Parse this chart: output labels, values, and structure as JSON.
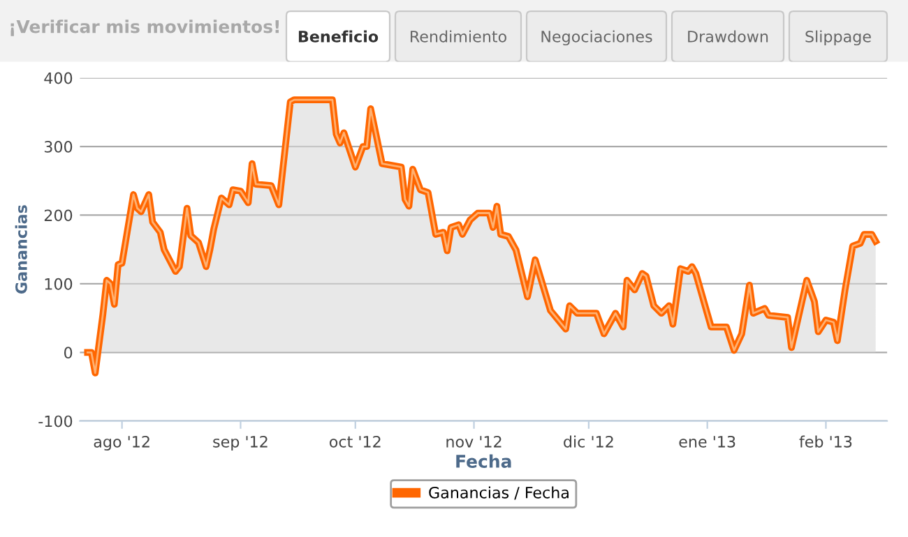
{
  "chart_data": {
    "type": "area",
    "title": "¡Verificar mis movimientos!",
    "annotations": [
      "Beneficio",
      "Rendimiento",
      "Negociaciones",
      "Drawdown",
      "Slippage"
    ],
    "xlabel": "Fecha",
    "ylabel": "Ganancias",
    "x": [
      "2012-07-23",
      "2012-07-24",
      "2012-07-25",
      "2012-07-27",
      "2012-07-28",
      "2012-07-29",
      "2012-07-30",
      "2012-07-31",
      "2012-08-01",
      "2012-08-04",
      "2012-08-05",
      "2012-08-06",
      "2012-08-08",
      "2012-08-09",
      "2012-08-11",
      "2012-08-12",
      "2012-08-15",
      "2012-08-16",
      "2012-08-18",
      "2012-08-19",
      "2012-08-21",
      "2012-08-23",
      "2012-08-24",
      "2012-08-25",
      "2012-08-27",
      "2012-08-29",
      "2012-08-30",
      "2012-09-01",
      "2012-09-03",
      "2012-09-04",
      "2012-09-05",
      "2012-09-09",
      "2012-09-11",
      "2012-09-14",
      "2012-09-15",
      "2012-09-23",
      "2012-09-25",
      "2012-09-26",
      "2012-09-27",
      "2012-09-28",
      "2012-10-01",
      "2012-10-03",
      "2012-10-04",
      "2012-10-05",
      "2012-10-08",
      "2012-10-13",
      "2012-10-14",
      "2012-10-15",
      "2012-10-16",
      "2012-10-18",
      "2012-10-20",
      "2012-10-22",
      "2012-10-24",
      "2012-10-25",
      "2012-10-26",
      "2012-10-28",
      "2012-10-29",
      "2012-10-31",
      "2012-11-02",
      "2012-11-05",
      "2012-11-06",
      "2012-11-07",
      "2012-11-08",
      "2012-11-10",
      "2012-11-12",
      "2012-11-15",
      "2012-11-17",
      "2012-11-21",
      "2012-11-25",
      "2012-11-26",
      "2012-11-28",
      "2012-12-03",
      "2012-12-05",
      "2012-12-08",
      "2012-12-10",
      "2012-12-11",
      "2012-12-13",
      "2012-12-15",
      "2012-12-16",
      "2012-12-18",
      "2012-12-20",
      "2012-12-22",
      "2012-12-23",
      "2012-12-25",
      "2012-12-27",
      "2012-12-28",
      "2012-12-29",
      "2013-01-02",
      "2013-01-06",
      "2013-01-08",
      "2013-01-10",
      "2013-01-12",
      "2013-01-13",
      "2013-01-16",
      "2013-01-17",
      "2013-01-22",
      "2013-01-23",
      "2013-01-27",
      "2013-01-29",
      "2013-01-30",
      "2013-02-01",
      "2013-02-03",
      "2013-02-04",
      "2013-02-06",
      "2013-02-08",
      "2013-02-10",
      "2013-02-11",
      "2013-02-13",
      "2013-02-14"
    ],
    "series": [
      {
        "name": "Ganancias / Fecha",
        "color": "#ff6600",
        "values": [
          0,
          0,
          -30,
          55,
          105,
          100,
          70,
          128,
          130,
          230,
          210,
          205,
          230,
          190,
          175,
          150,
          118,
          125,
          210,
          170,
          160,
          125,
          150,
          180,
          225,
          215,
          237,
          235,
          218,
          275,
          245,
          243,
          215,
          365,
          368,
          368,
          368,
          318,
          305,
          320,
          270,
          300,
          300,
          355,
          275,
          270,
          223,
          213,
          267,
          237,
          233,
          172,
          175,
          148,
          182,
          186,
          172,
          193,
          203,
          203,
          182,
          213,
          172,
          169,
          149,
          81,
          135,
          61,
          34,
          68,
          57,
          57,
          27,
          57,
          37,
          105,
          91,
          115,
          111,
          68,
          57,
          68,
          41,
          122,
          118,
          125,
          115,
          37,
          37,
          3,
          27,
          98,
          57,
          64,
          54,
          51,
          7,
          105,
          74,
          30,
          47,
          44,
          17,
          91,
          155,
          159,
          172,
          172,
          162
        ]
      }
    ],
    "xlim": [
      "2012-07-21",
      "2013-02-17"
    ],
    "xticks": [
      {
        "value": "2012-08-01",
        "label": "ago '12"
      },
      {
        "value": "2012-09-01",
        "label": "sep '12"
      },
      {
        "value": "2012-10-01",
        "label": "oct '12"
      },
      {
        "value": "2012-11-01",
        "label": "nov '12"
      },
      {
        "value": "2012-12-01",
        "label": "dic '12"
      },
      {
        "value": "2013-01-01",
        "label": "ene '13"
      },
      {
        "value": "2013-02-01",
        "label": "feb '13"
      }
    ],
    "ylim": [
      -100,
      400
    ],
    "yticks": [
      -100,
      0,
      100,
      200,
      300,
      400
    ],
    "grid": "y",
    "legend": "bottom"
  }
}
